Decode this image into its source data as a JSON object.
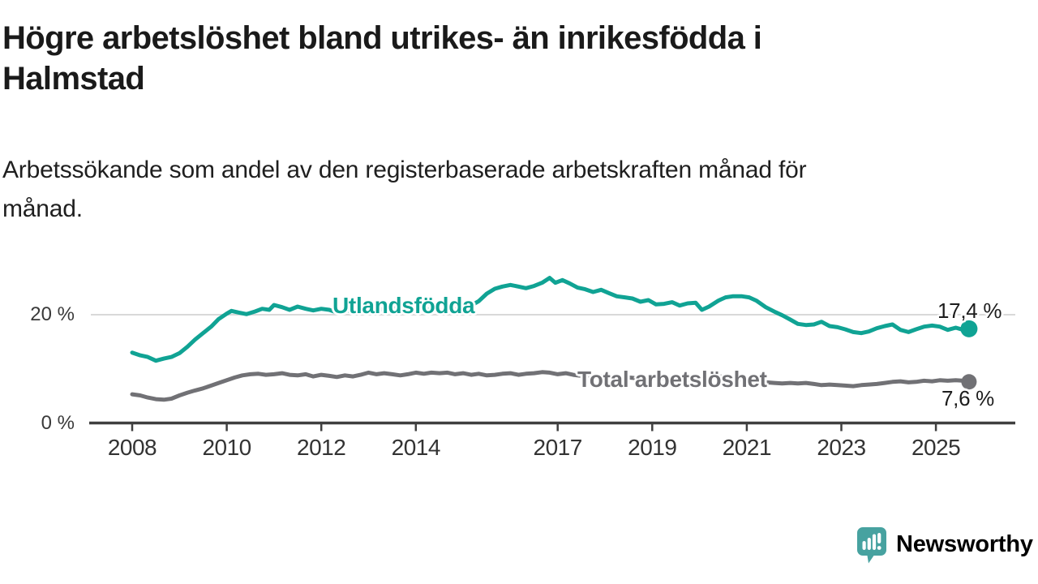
{
  "header": {
    "title_line1": "Högre arbetslöshet bland utrikes- än inrikesfödda i",
    "title_line2": "Halmstad",
    "subtitle_line1": "Arbetssökande som andel av den registerbaserade arbetskraften månad för",
    "subtitle_line2": "månad."
  },
  "branding": {
    "logo_text": "Newsworthy",
    "logo_color": "#47a2a0",
    "logo_icon": "speech-bubble-bar-chart"
  },
  "colors": {
    "background": "#ffffff",
    "gridline": "#d9d9d9",
    "axis": "#3f3f3f",
    "tick_label": "#333333",
    "value_label": "#1d1d1d"
  },
  "chart_data": {
    "type": "line",
    "title": "Högre arbetslöshet bland utrikes- än inrikesfödda i Halmstad",
    "subtitle": "Arbetssökande som andel av den registerbaserade arbetskraften månad för månad.",
    "unit": "%",
    "xlim": [
      2007.7,
      2025.95
    ],
    "ylim": [
      0,
      28.5
    ],
    "grid": "horizontal line at 20 only",
    "legend_position": "inline-labels",
    "x_ticks": [
      2008,
      2010,
      2012,
      2014,
      2017,
      2019,
      2021,
      2023,
      2025
    ],
    "x_tick_labels": [
      "2008",
      "2010",
      "2012",
      "2014",
      "2017",
      "2019",
      "2021",
      "2023",
      "2025"
    ],
    "y_ticks": [
      {
        "label": "20 %",
        "value": 20
      },
      {
        "label": "0 %",
        "value": 0
      }
    ],
    "series": [
      {
        "name": "Utlandsfödda",
        "color": "#10a394",
        "end_label": "17,4 %",
        "end_value": 17.4,
        "points": [
          [
            2008.0,
            13.0
          ],
          [
            2008.17,
            12.5
          ],
          [
            2008.33,
            12.2
          ],
          [
            2008.5,
            11.5
          ],
          [
            2008.67,
            11.9
          ],
          [
            2008.83,
            12.2
          ],
          [
            2009.0,
            12.9
          ],
          [
            2009.17,
            14.1
          ],
          [
            2009.33,
            15.4
          ],
          [
            2009.5,
            16.6
          ],
          [
            2009.67,
            17.8
          ],
          [
            2009.83,
            19.2
          ],
          [
            2010.0,
            20.2
          ],
          [
            2010.1,
            20.7
          ],
          [
            2010.25,
            20.4
          ],
          [
            2010.42,
            20.1
          ],
          [
            2010.6,
            20.6
          ],
          [
            2010.75,
            21.1
          ],
          [
            2010.9,
            20.9
          ],
          [
            2011.0,
            21.8
          ],
          [
            2011.17,
            21.4
          ],
          [
            2011.33,
            20.9
          ],
          [
            2011.5,
            21.5
          ],
          [
            2011.67,
            21.1
          ],
          [
            2011.83,
            20.8
          ],
          [
            2012.0,
            21.1
          ],
          [
            2012.17,
            20.9
          ],
          [
            2012.33,
            20.4
          ],
          [
            2012.5,
            20.9
          ],
          [
            2012.67,
            20.6
          ],
          [
            2012.83,
            20.9
          ],
          [
            2013.0,
            21.4
          ],
          [
            2013.17,
            20.8
          ],
          [
            2013.33,
            21.1
          ],
          [
            2013.5,
            21.3
          ],
          [
            2013.67,
            20.8
          ],
          [
            2013.83,
            20.7
          ],
          [
            2014.0,
            21.1
          ],
          [
            2014.17,
            20.8
          ],
          [
            2014.33,
            21.0
          ],
          [
            2014.5,
            20.8
          ],
          [
            2014.67,
            20.9
          ],
          [
            2014.83,
            21.0
          ],
          [
            2015.0,
            21.2
          ],
          [
            2015.17,
            21.7
          ],
          [
            2015.33,
            22.5
          ],
          [
            2015.5,
            23.9
          ],
          [
            2015.67,
            24.8
          ],
          [
            2015.83,
            25.2
          ],
          [
            2016.0,
            25.5
          ],
          [
            2016.17,
            25.2
          ],
          [
            2016.33,
            24.9
          ],
          [
            2016.5,
            25.3
          ],
          [
            2016.67,
            25.9
          ],
          [
            2016.83,
            26.8
          ],
          [
            2016.95,
            25.9
          ],
          [
            2017.1,
            26.4
          ],
          [
            2017.25,
            25.8
          ],
          [
            2017.42,
            25.0
          ],
          [
            2017.58,
            24.7
          ],
          [
            2017.75,
            24.2
          ],
          [
            2017.92,
            24.6
          ],
          [
            2018.08,
            24.0
          ],
          [
            2018.25,
            23.4
          ],
          [
            2018.42,
            23.2
          ],
          [
            2018.58,
            23.0
          ],
          [
            2018.75,
            22.4
          ],
          [
            2018.92,
            22.7
          ],
          [
            2019.08,
            21.9
          ],
          [
            2019.25,
            22.0
          ],
          [
            2019.42,
            22.3
          ],
          [
            2019.58,
            21.7
          ],
          [
            2019.75,
            22.1
          ],
          [
            2019.92,
            22.2
          ],
          [
            2020.05,
            20.9
          ],
          [
            2020.2,
            21.5
          ],
          [
            2020.4,
            22.6
          ],
          [
            2020.55,
            23.2
          ],
          [
            2020.7,
            23.4
          ],
          [
            2020.9,
            23.4
          ],
          [
            2021.05,
            23.2
          ],
          [
            2021.2,
            22.6
          ],
          [
            2021.4,
            21.4
          ],
          [
            2021.6,
            20.5
          ],
          [
            2021.75,
            19.9
          ],
          [
            2021.92,
            19.1
          ],
          [
            2022.08,
            18.3
          ],
          [
            2022.25,
            18.1
          ],
          [
            2022.42,
            18.2
          ],
          [
            2022.58,
            18.7
          ],
          [
            2022.75,
            17.9
          ],
          [
            2022.92,
            17.7
          ],
          [
            2023.08,
            17.3
          ],
          [
            2023.25,
            16.8
          ],
          [
            2023.42,
            16.6
          ],
          [
            2023.58,
            16.9
          ],
          [
            2023.75,
            17.5
          ],
          [
            2023.92,
            17.9
          ],
          [
            2024.08,
            18.2
          ],
          [
            2024.25,
            17.2
          ],
          [
            2024.42,
            16.8
          ],
          [
            2024.58,
            17.3
          ],
          [
            2024.75,
            17.8
          ],
          [
            2024.92,
            18.0
          ],
          [
            2025.08,
            17.8
          ],
          [
            2025.25,
            17.2
          ],
          [
            2025.42,
            17.6
          ],
          [
            2025.58,
            17.2
          ],
          [
            2025.7,
            17.4
          ]
        ]
      },
      {
        "name": "Total arbetslöshet",
        "color": "#717175",
        "end_label": "7,6 %",
        "end_value": 7.6,
        "points": [
          [
            2008.0,
            5.3
          ],
          [
            2008.17,
            5.1
          ],
          [
            2008.33,
            4.7
          ],
          [
            2008.5,
            4.4
          ],
          [
            2008.67,
            4.3
          ],
          [
            2008.83,
            4.5
          ],
          [
            2009.0,
            5.1
          ],
          [
            2009.17,
            5.6
          ],
          [
            2009.33,
            6.0
          ],
          [
            2009.5,
            6.4
          ],
          [
            2009.67,
            6.9
          ],
          [
            2009.83,
            7.4
          ],
          [
            2010.0,
            7.9
          ],
          [
            2010.17,
            8.4
          ],
          [
            2010.33,
            8.8
          ],
          [
            2010.5,
            9.0
          ],
          [
            2010.67,
            9.1
          ],
          [
            2010.83,
            8.9
          ],
          [
            2011.0,
            9.0
          ],
          [
            2011.17,
            9.2
          ],
          [
            2011.33,
            8.9
          ],
          [
            2011.5,
            8.8
          ],
          [
            2011.67,
            9.0
          ],
          [
            2011.83,
            8.6
          ],
          [
            2012.0,
            8.9
          ],
          [
            2012.17,
            8.7
          ],
          [
            2012.33,
            8.5
          ],
          [
            2012.5,
            8.8
          ],
          [
            2012.67,
            8.6
          ],
          [
            2012.83,
            8.9
          ],
          [
            2013.0,
            9.3
          ],
          [
            2013.17,
            9.0
          ],
          [
            2013.33,
            9.2
          ],
          [
            2013.5,
            9.0
          ],
          [
            2013.67,
            8.8
          ],
          [
            2013.83,
            9.0
          ],
          [
            2014.0,
            9.3
          ],
          [
            2014.17,
            9.1
          ],
          [
            2014.33,
            9.3
          ],
          [
            2014.5,
            9.2
          ],
          [
            2014.67,
            9.3
          ],
          [
            2014.83,
            9.0
          ],
          [
            2015.0,
            9.2
          ],
          [
            2015.17,
            8.9
          ],
          [
            2015.33,
            9.1
          ],
          [
            2015.5,
            8.8
          ],
          [
            2015.67,
            8.9
          ],
          [
            2015.83,
            9.1
          ],
          [
            2016.0,
            9.2
          ],
          [
            2016.17,
            8.9
          ],
          [
            2016.33,
            9.1
          ],
          [
            2016.5,
            9.2
          ],
          [
            2016.67,
            9.4
          ],
          [
            2016.83,
            9.3
          ],
          [
            2017.0,
            9.0
          ],
          [
            2017.17,
            9.2
          ],
          [
            2017.33,
            8.9
          ],
          [
            2017.5,
            8.7
          ],
          [
            2017.67,
            8.8
          ],
          [
            2017.83,
            8.6
          ],
          [
            2018.0,
            8.7
          ],
          [
            2018.25,
            8.5
          ],
          [
            2018.5,
            8.4
          ],
          [
            2018.75,
            8.2
          ],
          [
            2019.0,
            8.4
          ],
          [
            2019.25,
            8.2
          ],
          [
            2019.5,
            7.9
          ],
          [
            2019.75,
            8.0
          ],
          [
            2020.0,
            8.1
          ],
          [
            2020.25,
            8.4
          ],
          [
            2020.5,
            8.6
          ],
          [
            2020.75,
            8.4
          ],
          [
            2020.92,
            7.9
          ],
          [
            2021.08,
            7.5
          ],
          [
            2021.25,
            7.4
          ],
          [
            2021.42,
            7.5
          ],
          [
            2021.58,
            7.4
          ],
          [
            2021.75,
            7.3
          ],
          [
            2021.92,
            7.4
          ],
          [
            2022.08,
            7.3
          ],
          [
            2022.25,
            7.4
          ],
          [
            2022.42,
            7.2
          ],
          [
            2022.58,
            7.0
          ],
          [
            2022.75,
            7.1
          ],
          [
            2022.92,
            7.0
          ],
          [
            2023.08,
            6.9
          ],
          [
            2023.25,
            6.8
          ],
          [
            2023.42,
            7.0
          ],
          [
            2023.58,
            7.1
          ],
          [
            2023.75,
            7.2
          ],
          [
            2023.92,
            7.4
          ],
          [
            2024.08,
            7.6
          ],
          [
            2024.25,
            7.7
          ],
          [
            2024.42,
            7.5
          ],
          [
            2024.58,
            7.6
          ],
          [
            2024.75,
            7.8
          ],
          [
            2024.92,
            7.7
          ],
          [
            2025.08,
            7.9
          ],
          [
            2025.25,
            7.8
          ],
          [
            2025.42,
            7.9
          ],
          [
            2025.58,
            7.8
          ],
          [
            2025.7,
            7.6
          ]
        ]
      }
    ]
  }
}
